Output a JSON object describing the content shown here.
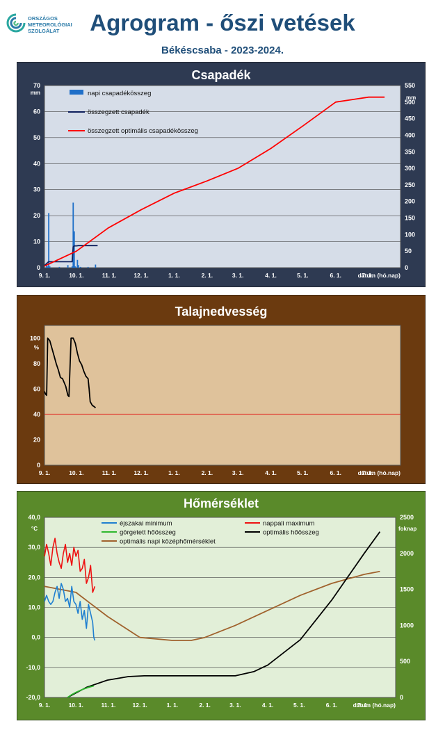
{
  "header": {
    "logo_lines": [
      "ORSZÁGOS",
      "METEOROLÓGIAI",
      "SZOLGÁLAT"
    ],
    "title": "Agrogram - őszi vetések",
    "subtitle": "Békéscsaba - 2023-2024."
  },
  "colors": {
    "header_text": "#1f4e79",
    "panel1_bg": "#2e3a52",
    "panel1_plot": "#d6dde8",
    "panel2_bg": "#6b3a0f",
    "panel2_plot": "#dfc29b",
    "panel3_bg": "#5a8a2a",
    "panel3_plot": "#e2efd8"
  },
  "chart_data": [
    {
      "type": "bar+line",
      "title": "Csapadék",
      "ylabel_left_unit": "mm",
      "ylabel_right_unit": "mm",
      "left_ticks": [
        "0",
        "10",
        "20",
        "30",
        "40",
        "50",
        "60",
        "70"
      ],
      "right_ticks": [
        "0",
        "50",
        "100",
        "150",
        "200",
        "250",
        "300",
        "350",
        "400",
        "450",
        "500",
        "550"
      ],
      "x_ticks": [
        "9. 1.",
        "10. 1.",
        "11. 1.",
        "12. 1.",
        "1. 1.",
        "2. 1.",
        "3. 1.",
        "4. 1.",
        "5. 1.",
        "6. 1.",
        "7. 1."
      ],
      "x_axis_label": "dátum (hó.nap)",
      "ylim_left": [
        0,
        70
      ],
      "ylim_right": [
        0,
        550
      ],
      "legend": [
        "napi csapadékösszeg",
        "összegzett csapadék",
        "összegzett optimális csapadékösszeg"
      ],
      "series": [
        {
          "name": "napi csapadékösszeg",
          "kind": "bar",
          "color": "#1f6fc8",
          "x": [
            2,
            3,
            4,
            5,
            14,
            22,
            26,
            27,
            28,
            29,
            31,
            32,
            34,
            41,
            48
          ],
          "values": [
            1.0,
            0.5,
            21.0,
            0.5,
            0.3,
            1.0,
            0.5,
            25.0,
            14.0,
            0.5,
            3.0,
            1.0,
            0.3,
            0.3,
            1.2
          ]
        },
        {
          "name": "összegzett csapadék",
          "kind": "line",
          "axis": "left",
          "color": "#0d1f5c",
          "x": [
            0,
            3,
            4,
            26,
            27,
            28,
            30,
            32,
            50
          ],
          "values": [
            0.8,
            2.0,
            2.3,
            2.3,
            8.0,
            8.4,
            8.4,
            8.5,
            8.5
          ]
        },
        {
          "name": "összegzett optimális csapadékösszeg",
          "kind": "line",
          "axis": "right",
          "color": "#ff0000",
          "x": [
            0,
            30,
            60,
            91,
            122,
            153,
            182,
            213,
            244,
            274,
            305,
            320
          ],
          "values": [
            5,
            50,
            120,
            175,
            225,
            262,
            300,
            360,
            430,
            500,
            515,
            515
          ]
        }
      ]
    },
    {
      "type": "line",
      "title": "Talajnedvesség",
      "ylabel_left_unit": "%",
      "left_ticks": [
        "0",
        "20",
        "40",
        "60",
        "80",
        "100"
      ],
      "x_ticks": [
        "9. 1.",
        "10. 1.",
        "11. 1.",
        "12. 1.",
        "1. 1.",
        "2. 1.",
        "3. 1.",
        "4. 1.",
        "5. 1.",
        "6. 1.",
        "7. 1."
      ],
      "x_axis_label": "dátum (hó.nap)",
      "ylim": [
        0,
        110
      ],
      "reference_line": 40,
      "series": [
        {
          "name": "talajnedvesség",
          "color": "#000000",
          "x": [
            0,
            1,
            2,
            3,
            5,
            7,
            9,
            11,
            13,
            15,
            17,
            20,
            22,
            23,
            25,
            26,
            27,
            29,
            31,
            33,
            35,
            37,
            39,
            41,
            42,
            43,
            45,
            47,
            48
          ],
          "values": [
            58,
            56,
            55,
            100,
            98,
            92,
            86,
            80,
            75,
            69,
            68,
            62,
            55,
            54,
            100,
            100,
            100,
            96,
            88,
            82,
            79,
            74,
            70,
            68,
            60,
            50,
            47,
            46,
            45
          ]
        }
      ]
    },
    {
      "type": "line",
      "title": "Hőmérséklet",
      "ylabel_left_unit": "°C",
      "ylabel_right_unit": "foknap",
      "left_ticks": [
        "-20,0",
        "-10,0",
        "0,0",
        "10,0",
        "20,0",
        "30,0",
        "40,0"
      ],
      "right_ticks": [
        "0",
        "500",
        "1000",
        "1500",
        "2000",
        "2500"
      ],
      "x_ticks": [
        "9. 1.",
        "10. 1.",
        "11. 1.",
        "12. 1.",
        "1. 1.",
        "2. 1.",
        "3. 1.",
        "4. 1.",
        "5. 1.",
        "6. 1.",
        "7. 1."
      ],
      "x_axis_label": "dátum (hó.nap)",
      "ylim_left": [
        -20,
        40
      ],
      "ylim_right": [
        0,
        2500
      ],
      "legend": [
        "éjszakai minimum",
        "nappali maximum",
        "görgetett hőösszeg",
        "optimális hőösszeg",
        "optimális napi középhőmérséklet"
      ],
      "series": [
        {
          "name": "éjszakai minimum",
          "axis": "left",
          "color": "#1f7fd0",
          "x": [
            0,
            2,
            4,
            6,
            8,
            10,
            12,
            14,
            16,
            18,
            20,
            22,
            24,
            26,
            28,
            30,
            32,
            34,
            36,
            38,
            40,
            42,
            44,
            46,
            47,
            48
          ],
          "values": [
            12,
            14,
            12,
            11,
            12,
            15,
            17,
            13,
            18,
            16,
            12,
            13,
            10,
            17,
            12,
            11,
            8,
            12,
            6,
            9,
            3,
            11,
            8,
            5,
            0,
            -1
          ]
        },
        {
          "name": "nappali maximum",
          "axis": "left",
          "color": "#ee1111",
          "x": [
            0,
            2,
            4,
            6,
            8,
            10,
            12,
            14,
            16,
            18,
            20,
            22,
            24,
            26,
            28,
            30,
            32,
            34,
            36,
            38,
            40,
            42,
            44,
            46,
            48
          ],
          "values": [
            27,
            31,
            28,
            24,
            30,
            33,
            28,
            25,
            23,
            28,
            31,
            25,
            28,
            24,
            30,
            27,
            29,
            22,
            23,
            26,
            18,
            20,
            24,
            15,
            17
          ]
        },
        {
          "name": "görgetett hőösszeg",
          "axis": "right",
          "color": "#2eb82e",
          "x": [
            22,
            26,
            30,
            36,
            42,
            47
          ],
          "values": [
            0,
            40,
            70,
            110,
            140,
            160
          ]
        },
        {
          "name": "optimális hőösszeg",
          "axis": "right",
          "color": "#000000",
          "x": [
            22,
            40,
            60,
            80,
            95,
            122,
            153,
            182,
            200,
            213,
            244,
            274,
            305,
            320
          ],
          "values": [
            0,
            140,
            240,
            290,
            300,
            300,
            300,
            300,
            360,
            450,
            800,
            1350,
            2000,
            2300
          ]
        },
        {
          "name": "optimális napi középhőmérséklet",
          "axis": "left",
          "color": "#a0622d",
          "x": [
            0,
            30,
            60,
            91,
            122,
            140,
            153,
            182,
            213,
            244,
            274,
            305,
            320
          ],
          "values": [
            17,
            15,
            7,
            0,
            -1,
            -1,
            0,
            4,
            9,
            14,
            18,
            21,
            22
          ]
        }
      ]
    }
  ]
}
